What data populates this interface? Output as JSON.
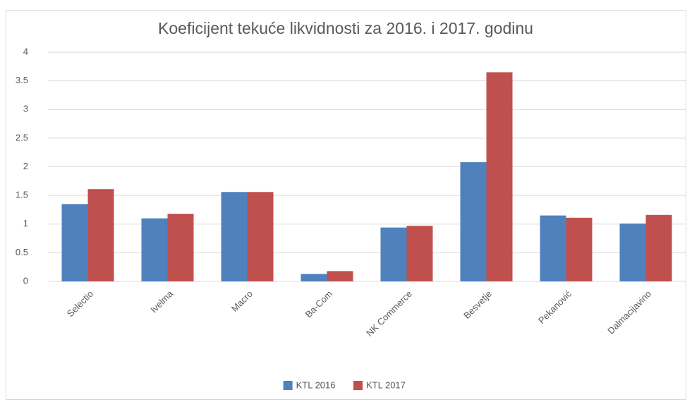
{
  "chart_data": {
    "type": "bar",
    "title": "Koeficijent tekuće likvidnosti za 2016. i 2017. godinu",
    "categories": [
      "Selectio",
      "Ivelma",
      "Macro",
      "Ba-Com",
      "NK Commerce",
      "Besvetje",
      "Pekanović",
      "Dalmacijavino"
    ],
    "series": [
      {
        "name": "KTL 2016",
        "color": "#4f81bd",
        "values": [
          1.35,
          1.1,
          1.56,
          0.13,
          0.94,
          2.08,
          1.15,
          1.01
        ]
      },
      {
        "name": "KTL 2017",
        "color": "#c0504d",
        "values": [
          1.61,
          1.18,
          1.56,
          0.18,
          0.97,
          3.65,
          1.11,
          1.16
        ]
      }
    ],
    "ylim": [
      0,
      4
    ],
    "yticks": [
      0,
      0.5,
      1,
      1.5,
      2,
      2.5,
      3,
      3.5,
      4
    ],
    "grid": true,
    "legend": "bottom"
  }
}
